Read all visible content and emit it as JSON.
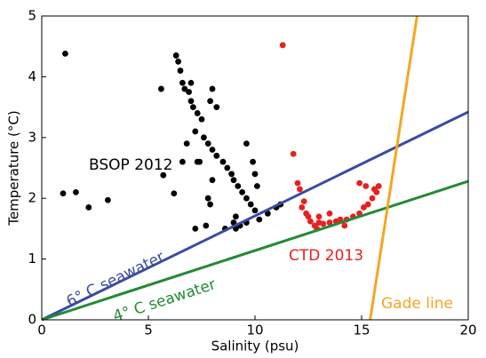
{
  "chart_data": {
    "type": "scatter",
    "xlabel": "Salinity (psu)",
    "ylabel": "Temperature (°C)",
    "xlim": [
      0,
      20
    ],
    "ylim": [
      0,
      5
    ],
    "xticks": [
      0,
      5,
      10,
      15,
      20
    ],
    "yticks": [
      0,
      1,
      2,
      3,
      4,
      5
    ],
    "series": [
      {
        "name": "BSOP 2012",
        "color": "#000000",
        "kind": "points",
        "x": [
          1.1,
          1.0,
          1.6,
          2.2,
          3.1,
          5.6,
          5.7,
          6.2,
          6.3,
          6.4,
          6.5,
          6.6,
          6.7,
          6.9,
          7.0,
          7.1,
          7.3,
          7.5,
          7.2,
          7.6,
          7.8,
          8.0,
          7.4,
          8.2,
          8.5,
          8.7,
          8.9,
          9.0,
          9.2,
          9.4,
          9.6,
          9.8,
          10.0,
          9.1,
          9.0,
          9.1,
          9.3,
          9.6,
          10.2,
          10.6,
          11.0,
          11.2,
          10.1,
          10.0,
          9.9,
          9.6,
          8.2,
          8.0,
          7.9,
          7.0,
          6.8,
          7.3,
          7.8,
          8.6,
          7.2,
          7.7,
          8.0,
          7.9,
          6.6
        ],
        "y": [
          4.38,
          2.08,
          2.1,
          1.85,
          1.97,
          3.8,
          2.38,
          2.08,
          4.35,
          4.25,
          4.1,
          3.9,
          3.8,
          3.75,
          3.6,
          3.5,
          3.4,
          3.3,
          3.1,
          3.0,
          2.9,
          2.8,
          2.6,
          2.7,
          2.6,
          2.5,
          2.4,
          2.3,
          2.2,
          2.1,
          2.0,
          1.9,
          1.8,
          1.7,
          1.6,
          1.5,
          1.55,
          1.6,
          1.65,
          1.75,
          1.85,
          1.9,
          2.2,
          2.4,
          2.6,
          2.9,
          3.5,
          3.8,
          3.6,
          3.9,
          2.9,
          2.6,
          2.0,
          1.5,
          1.5,
          1.55,
          2.3,
          1.9,
          2.6
        ]
      },
      {
        "name": "CTD 2013",
        "color": "#e8201f",
        "kind": "points",
        "x": [
          11.3,
          11.8,
          12.0,
          12.1,
          12.3,
          12.2,
          12.4,
          12.6,
          12.8,
          13.0,
          13.2,
          13.5,
          13.8,
          14.0,
          14.3,
          14.6,
          14.9,
          15.1,
          15.3,
          15.5,
          15.7,
          15.8,
          15.6,
          14.9,
          13.5,
          13.0,
          12.5,
          15.2,
          12.9,
          14.2
        ],
        "y": [
          4.52,
          2.73,
          2.25,
          2.15,
          1.95,
          1.85,
          1.75,
          1.62,
          1.55,
          1.6,
          1.58,
          1.6,
          1.62,
          1.65,
          1.65,
          1.7,
          1.75,
          1.85,
          1.9,
          2.0,
          2.1,
          2.2,
          2.15,
          2.25,
          1.75,
          1.7,
          1.7,
          2.2,
          1.5,
          1.55
        ]
      },
      {
        "name": "6° C seawater",
        "color": "#3a4ba0",
        "kind": "line",
        "x": [
          0,
          20
        ],
        "y": [
          0,
          3.42
        ]
      },
      {
        "name": "4° C seawater",
        "color": "#228b34",
        "kind": "line",
        "x": [
          0,
          20
        ],
        "y": [
          0,
          2.28
        ]
      },
      {
        "name": "Gade line",
        "color": "#f5a623",
        "kind": "line",
        "x": [
          15.4,
          17.6
        ],
        "y": [
          0,
          5
        ]
      }
    ]
  }
}
